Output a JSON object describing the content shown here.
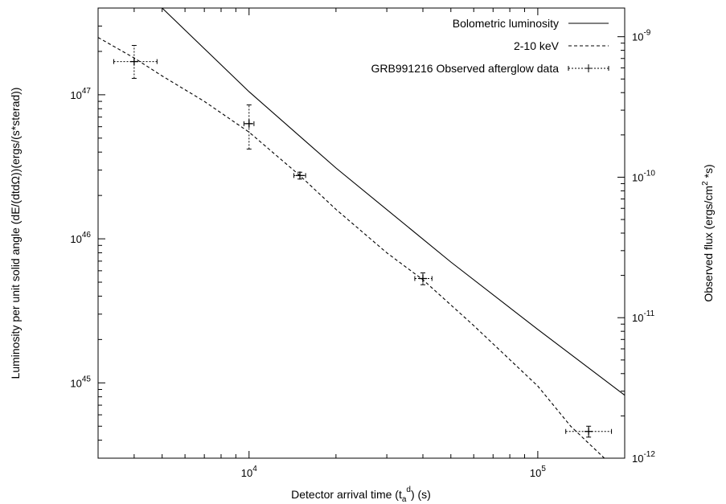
{
  "chart_data": {
    "type": "line",
    "x_scale": "log",
    "y_scale": "log",
    "y2_scale": "log",
    "xlim": [
      3000,
      200000
    ],
    "ylim": [
      3e+44,
      4e+47
    ],
    "y2lim": [
      1e-12,
      1.6e-09
    ],
    "grid": false,
    "legend_position": "top-right",
    "xlabel": {
      "main": "Detector arrival time (t",
      "sub": "a",
      "sup": "d",
      "tail": ") (s)"
    },
    "ylabel": "Luminosity per unit solid angle (dE/(dtdΩ))(ergs/(s*sterad))",
    "y2label": {
      "main": "Observed flux (ergs/cm",
      "sup": "2",
      "tail": " *s)"
    },
    "x_ticks": [
      {
        "value": 10000,
        "base": "10",
        "exp": "4"
      },
      {
        "value": 100000,
        "base": "10",
        "exp": "5"
      }
    ],
    "y_ticks": [
      {
        "value": 1e+45,
        "base": "10",
        "exp": "45"
      },
      {
        "value": 1e+46,
        "base": "10",
        "exp": "46"
      },
      {
        "value": 1e+47,
        "base": "10",
        "exp": "47"
      }
    ],
    "y2_ticks": [
      {
        "value": 1e-12,
        "base": "10",
        "exp": "-12"
      },
      {
        "value": 1e-11,
        "base": "10",
        "exp": "-11"
      },
      {
        "value": 1e-10,
        "base": "10",
        "exp": "-10"
      },
      {
        "value": 1e-09,
        "base": "10",
        "exp": "-9"
      }
    ],
    "series": [
      {
        "name": "Bolometric luminosity",
        "style": "solid",
        "x": [
          5000,
          10000,
          20000,
          50000,
          100000,
          200000
        ],
        "y": [
          4e+47,
          1.05e+47,
          3.1e+46,
          6.9e+45,
          2.35e+45,
          8.2e+44
        ]
      },
      {
        "name": "2-10 keV",
        "style": "dashed",
        "x": [
          3000,
          4000,
          5000,
          7000,
          10000,
          15000,
          20000,
          30000,
          40000,
          60000,
          100000,
          130000,
          170000,
          200000
        ],
        "y": [
          2.5e+47,
          1.8e+47,
          1.35e+47,
          9e+46,
          5.5e+46,
          2.75e+46,
          1.6e+46,
          8e+45,
          5.2e+45,
          2.5e+45,
          9.5e+44,
          5e+44,
          3e+44,
          2e+44
        ]
      },
      {
        "name": "GRB991216 Observed afterglow data",
        "style": "errorbars",
        "points": [
          {
            "x": 4000,
            "y": 1.7e+47,
            "xerr": [
              3400,
              4800
            ],
            "yerr": [
              1.3e+47,
              2.2e+47
            ]
          },
          {
            "x": 10000,
            "y": 6.3e+46,
            "xerr": [
              9600,
              10400
            ],
            "yerr": [
              4.2e+46,
              8.5e+46
            ]
          },
          {
            "x": 15000,
            "y": 2.75e+46,
            "xerr": [
              14300,
              15700
            ],
            "yerr": [
              2.6e+46,
              2.9e+46
            ]
          },
          {
            "x": 40000,
            "y": 5.3e+45,
            "xerr": [
              37500,
              43000
            ],
            "yerr": [
              4.8e+45,
              5.8e+45
            ]
          },
          {
            "x": 150000,
            "y": 4.6e+44,
            "xerr": [
              125000,
              180000
            ],
            "yerr": [
              4.2e+44,
              5e+44
            ]
          }
        ]
      }
    ]
  }
}
